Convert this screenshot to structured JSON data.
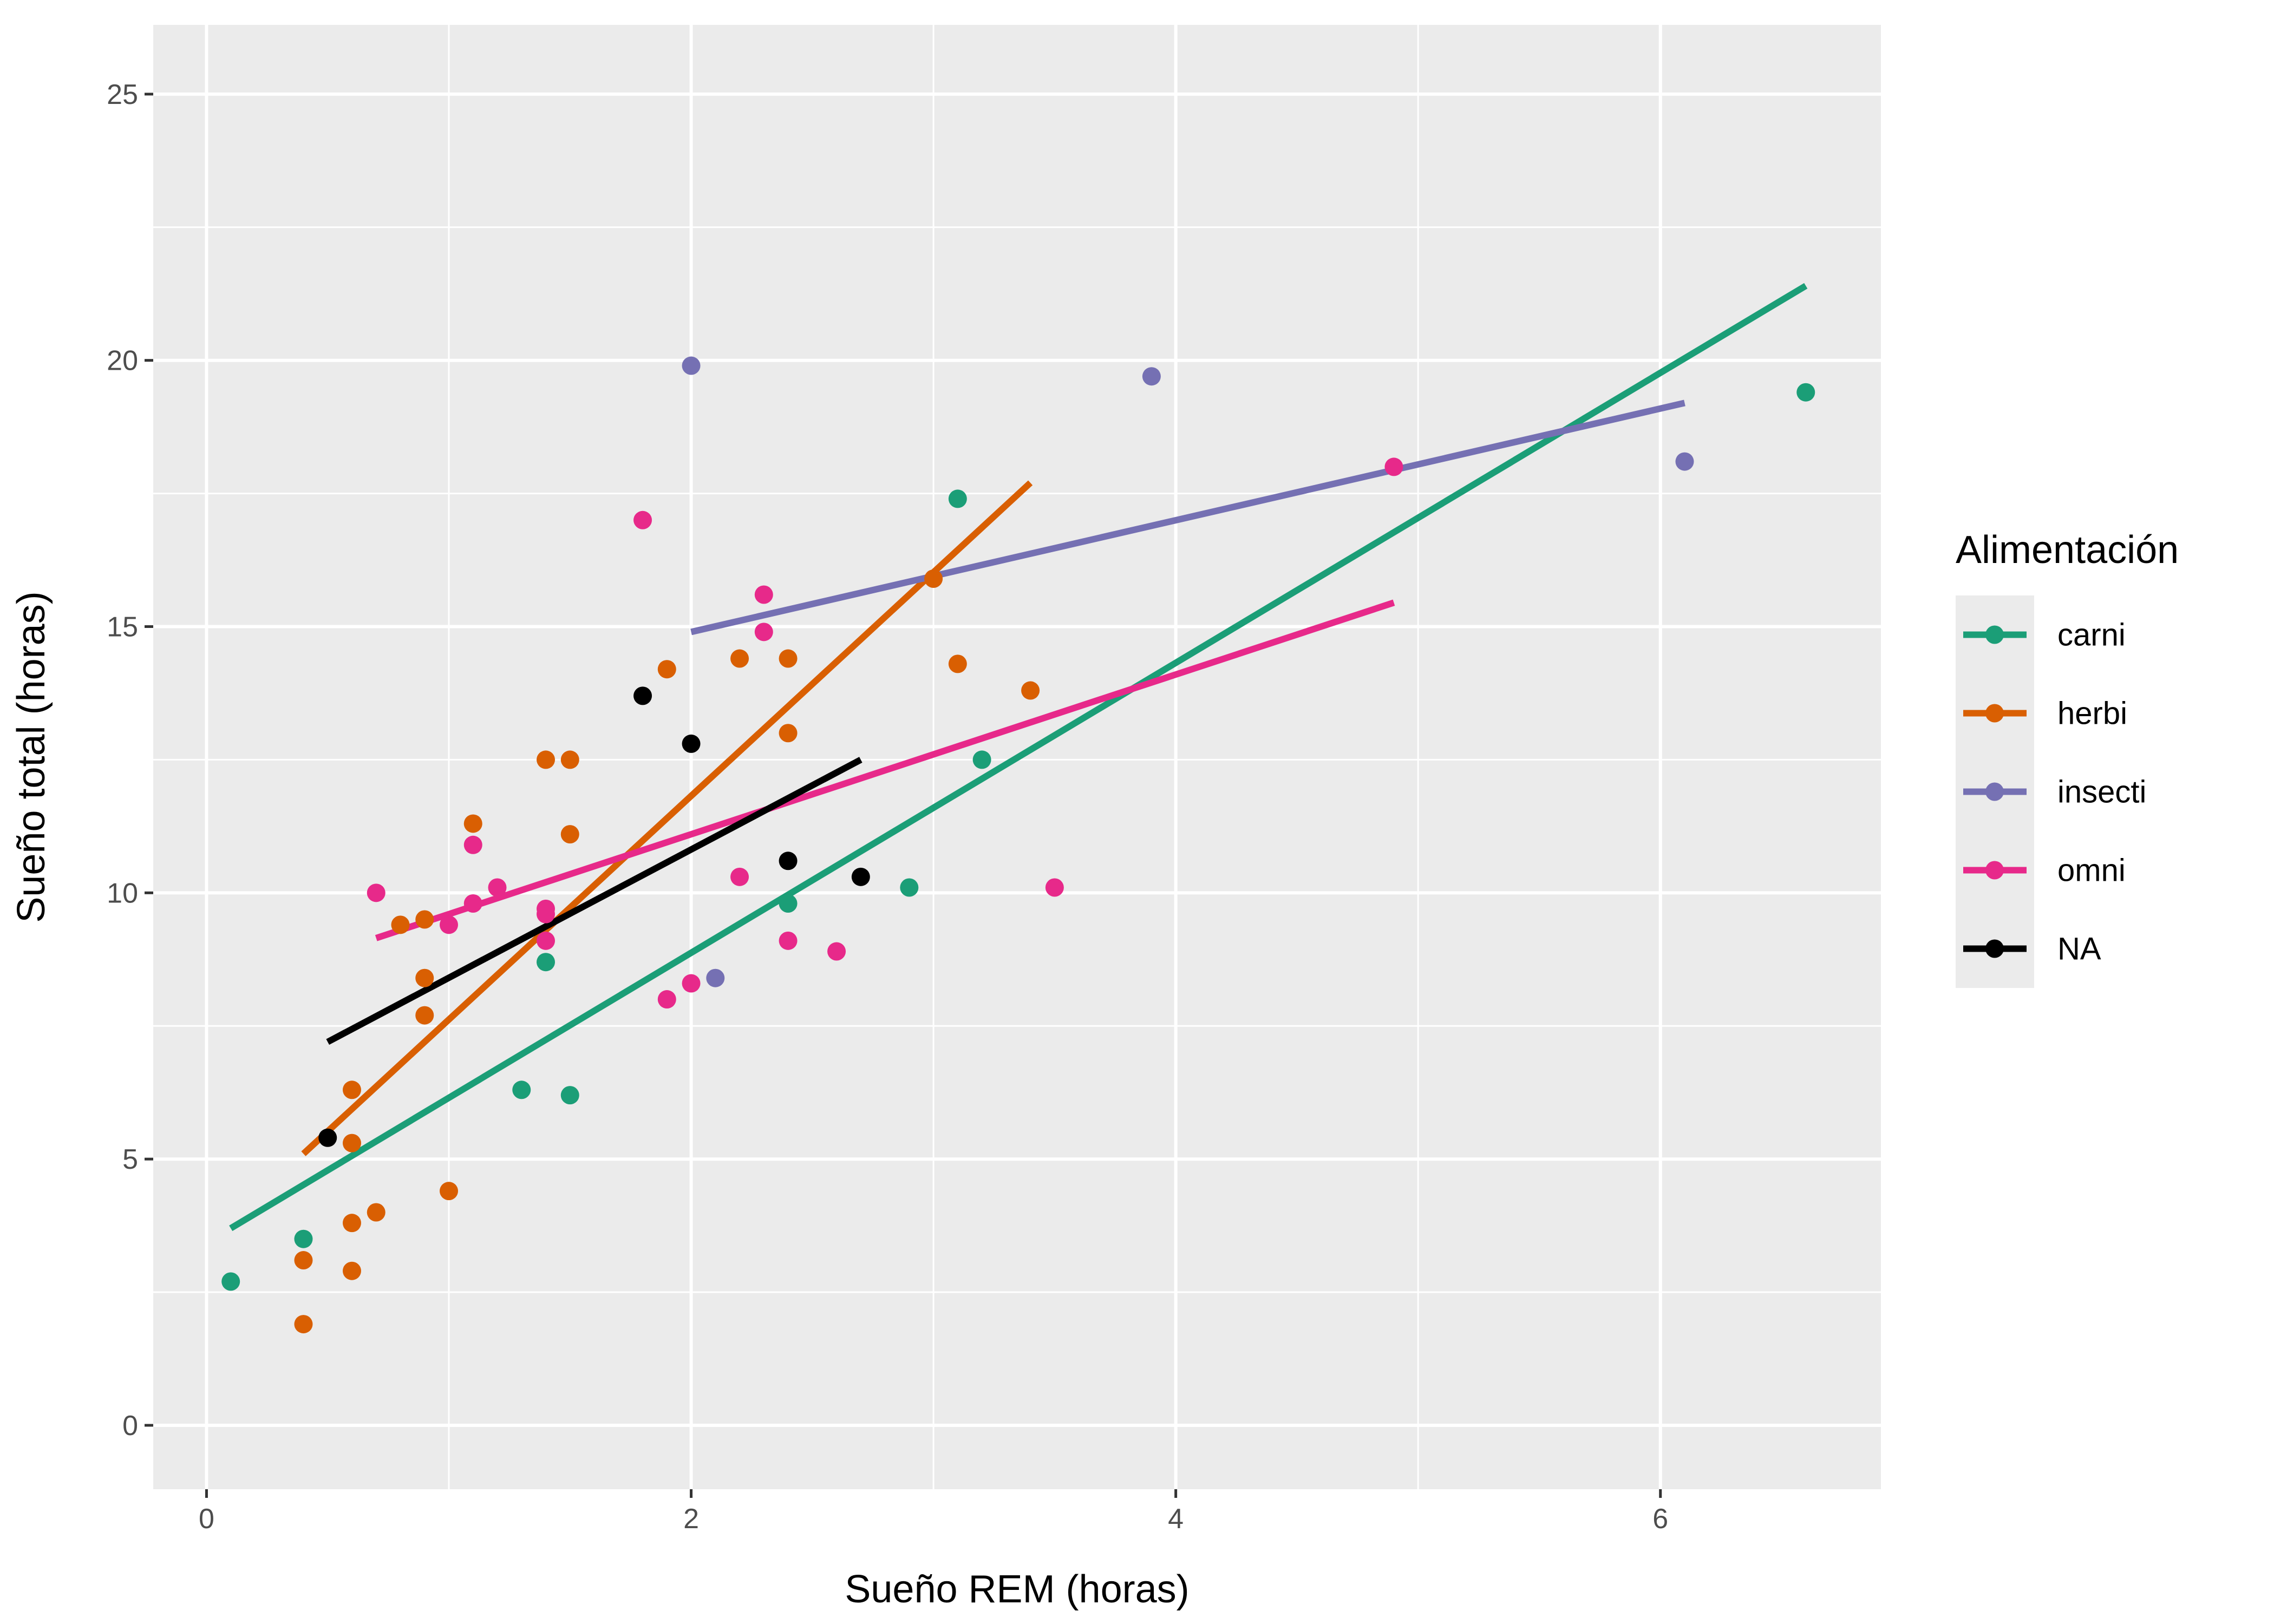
{
  "chart_data": {
    "type": "scatter",
    "xlabel": "Sueño REM (horas)",
    "ylabel": "Sueño total (horas)",
    "xlim": [
      -0.22,
      6.91
    ],
    "ylim": [
      -1.2,
      26.3
    ],
    "x_ticks": [
      0,
      2,
      4,
      6
    ],
    "x_tick_labels": [
      "0",
      "2",
      "4",
      "6"
    ],
    "y_ticks": [
      0,
      5,
      10,
      15,
      20,
      25
    ],
    "y_tick_labels": [
      "0",
      "5",
      "10",
      "15",
      "20",
      "25"
    ],
    "grid": true,
    "legend": {
      "title": "Alimentación",
      "position": "right",
      "entries": [
        "carni",
        "herbi",
        "insecti",
        "omni",
        "NA"
      ]
    },
    "series": [
      {
        "name": "carni",
        "color": "#1B9E77",
        "points": [
          [
            0.1,
            2.7
          ],
          [
            0.4,
            3.5
          ],
          [
            1.3,
            6.3
          ],
          [
            1.4,
            8.7
          ],
          [
            1.5,
            6.2
          ],
          [
            2.4,
            9.8
          ],
          [
            2.9,
            10.1
          ],
          [
            3.1,
            17.4
          ],
          [
            3.2,
            12.5
          ],
          [
            6.6,
            19.4
          ]
        ],
        "fit": [
          [
            0.1,
            3.7
          ],
          [
            6.6,
            21.4
          ]
        ]
      },
      {
        "name": "herbi",
        "color": "#D95F02",
        "points": [
          [
            0.4,
            1.9
          ],
          [
            0.4,
            3.1
          ],
          [
            0.6,
            2.9
          ],
          [
            0.6,
            3.8
          ],
          [
            0.6,
            5.3
          ],
          [
            0.6,
            6.3
          ],
          [
            0.7,
            4.0
          ],
          [
            0.8,
            9.4
          ],
          [
            0.9,
            7.7
          ],
          [
            0.9,
            8.4
          ],
          [
            0.9,
            9.5
          ],
          [
            1.0,
            4.4
          ],
          [
            1.1,
            11.3
          ],
          [
            1.4,
            12.5
          ],
          [
            1.5,
            12.5
          ],
          [
            1.5,
            11.1
          ],
          [
            1.9,
            14.2
          ],
          [
            2.2,
            14.4
          ],
          [
            2.4,
            14.4
          ],
          [
            2.4,
            13.0
          ],
          [
            3.0,
            15.9
          ],
          [
            3.1,
            14.3
          ],
          [
            3.4,
            13.8
          ]
        ],
        "fit": [
          [
            0.4,
            5.1
          ],
          [
            3.4,
            17.7
          ]
        ]
      },
      {
        "name": "insecti",
        "color": "#7570B3",
        "points": [
          [
            2.0,
            19.9
          ],
          [
            2.1,
            8.4
          ],
          [
            3.9,
            19.7
          ],
          [
            6.1,
            18.1
          ]
        ],
        "fit": [
          [
            2.0,
            14.9
          ],
          [
            6.1,
            19.2
          ]
        ]
      },
      {
        "name": "omni",
        "color": "#E7298A",
        "points": [
          [
            0.7,
            10.0
          ],
          [
            1.0,
            9.4
          ],
          [
            1.1,
            9.8
          ],
          [
            1.1,
            10.9
          ],
          [
            1.2,
            10.1
          ],
          [
            1.4,
            9.1
          ],
          [
            1.4,
            9.6
          ],
          [
            1.4,
            9.7
          ],
          [
            1.8,
            17.0
          ],
          [
            1.9,
            8.0
          ],
          [
            2.0,
            8.3
          ],
          [
            2.2,
            10.3
          ],
          [
            2.3,
            15.6
          ],
          [
            2.3,
            14.9
          ],
          [
            2.4,
            9.1
          ],
          [
            2.6,
            8.9
          ],
          [
            3.5,
            10.1
          ],
          [
            4.9,
            18.0
          ]
        ],
        "fit": [
          [
            0.7,
            9.15
          ],
          [
            4.9,
            15.45
          ]
        ]
      },
      {
        "name": "NA",
        "color": "#000000",
        "points": [
          [
            0.5,
            5.4
          ],
          [
            1.8,
            13.7
          ],
          [
            2.0,
            12.8
          ],
          [
            2.4,
            10.6
          ],
          [
            2.7,
            10.3
          ]
        ],
        "fit": [
          [
            0.5,
            7.2
          ],
          [
            2.7,
            12.5
          ]
        ]
      }
    ]
  }
}
